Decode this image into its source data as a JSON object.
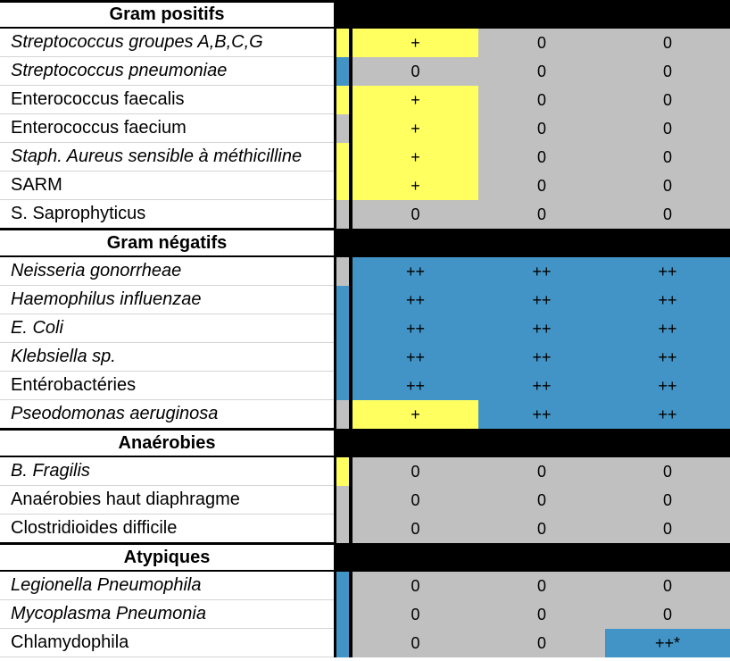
{
  "colors": {
    "yellow": "#ffff5f",
    "blue": "#4394c6",
    "gray": "#c0c0c0",
    "black": "#000000"
  },
  "sections": [
    {
      "title": "Gram positifs",
      "rows": [
        {
          "name": "Streptococcus groupes A,B,C,G",
          "italic": true,
          "strip": "yellow",
          "values": [
            "+",
            "0",
            "0"
          ],
          "fills": [
            "yellow",
            "gray",
            "gray"
          ]
        },
        {
          "name": "Streptococcus pneumoniae",
          "italic": true,
          "strip": "blue",
          "values": [
            "0",
            "0",
            "0"
          ],
          "fills": [
            "gray",
            "gray",
            "gray"
          ]
        },
        {
          "name": "Enterococcus faecalis",
          "italic": false,
          "strip": "yellow",
          "values": [
            "+",
            "0",
            "0"
          ],
          "fills": [
            "yellow",
            "gray",
            "gray"
          ]
        },
        {
          "name": "Enterococcus faecium",
          "italic": false,
          "strip": "gray",
          "values": [
            "+",
            "0",
            "0"
          ],
          "fills": [
            "yellow",
            "gray",
            "gray"
          ]
        },
        {
          "name": "Staph. Aureus sensible à méthicilline",
          "italic": true,
          "strip": "yellow",
          "values": [
            "+",
            "0",
            "0"
          ],
          "fills": [
            "yellow",
            "gray",
            "gray"
          ]
        },
        {
          "name": "SARM",
          "italic": false,
          "strip": "yellow",
          "values": [
            "+",
            "0",
            "0"
          ],
          "fills": [
            "yellow",
            "gray",
            "gray"
          ]
        },
        {
          "name": "S. Saprophyticus",
          "italic": false,
          "strip": "gray",
          "values": [
            "0",
            "0",
            "0"
          ],
          "fills": [
            "gray",
            "gray",
            "gray"
          ]
        }
      ]
    },
    {
      "title": "Gram négatifs",
      "rows": [
        {
          "name": "Neisseria gonorrheae",
          "italic": true,
          "strip": "gray",
          "values": [
            "++",
            "++",
            "++"
          ],
          "fills": [
            "blue",
            "blue",
            "blue"
          ]
        },
        {
          "name": "Haemophilus influenzae",
          "italic": true,
          "strip": "blue",
          "values": [
            "++",
            "++",
            "++"
          ],
          "fills": [
            "blue",
            "blue",
            "blue"
          ]
        },
        {
          "name": "E. Coli",
          "italic": true,
          "strip": "blue",
          "values": [
            "++",
            "++",
            "++"
          ],
          "fills": [
            "blue",
            "blue",
            "blue"
          ]
        },
        {
          "name": "Klebsiella sp.",
          "italic": true,
          "strip": "blue",
          "values": [
            "++",
            "++",
            "++"
          ],
          "fills": [
            "blue",
            "blue",
            "blue"
          ]
        },
        {
          "name": "Entérobactéries",
          "italic": false,
          "strip": "blue",
          "values": [
            "++",
            "++",
            "++"
          ],
          "fills": [
            "blue",
            "blue",
            "blue"
          ]
        },
        {
          "name": "Pseodomonas aeruginosa",
          "italic": true,
          "strip": "gray",
          "values": [
            "+",
            "++",
            "++"
          ],
          "fills": [
            "yellow",
            "blue",
            "blue"
          ]
        }
      ]
    },
    {
      "title": "Anaérobies",
      "rows": [
        {
          "name": "B. Fragilis",
          "italic": true,
          "strip": "yellow",
          "values": [
            "0",
            "0",
            "0"
          ],
          "fills": [
            "gray",
            "gray",
            "gray"
          ]
        },
        {
          "name": "Anaérobies haut diaphragme",
          "italic": false,
          "strip": "gray",
          "values": [
            "0",
            "0",
            "0"
          ],
          "fills": [
            "gray",
            "gray",
            "gray"
          ]
        },
        {
          "name": "Clostridioides difficile",
          "italic": false,
          "strip": "gray",
          "values": [
            "0",
            "0",
            "0"
          ],
          "fills": [
            "gray",
            "gray",
            "gray"
          ]
        }
      ]
    },
    {
      "title": "Atypiques",
      "rows": [
        {
          "name": "Legionella Pneumophila",
          "italic": true,
          "strip": "blue",
          "values": [
            "0",
            "0",
            "0"
          ],
          "fills": [
            "gray",
            "gray",
            "gray"
          ]
        },
        {
          "name": "Mycoplasma Pneumonia",
          "italic": true,
          "strip": "blue",
          "values": [
            "0",
            "0",
            "0"
          ],
          "fills": [
            "gray",
            "gray",
            "gray"
          ]
        },
        {
          "name": "Chlamydophila",
          "italic": false,
          "strip": "blue",
          "values": [
            "0",
            "0",
            "++*"
          ],
          "fills": [
            "gray",
            "gray",
            "blue"
          ]
        }
      ]
    }
  ]
}
